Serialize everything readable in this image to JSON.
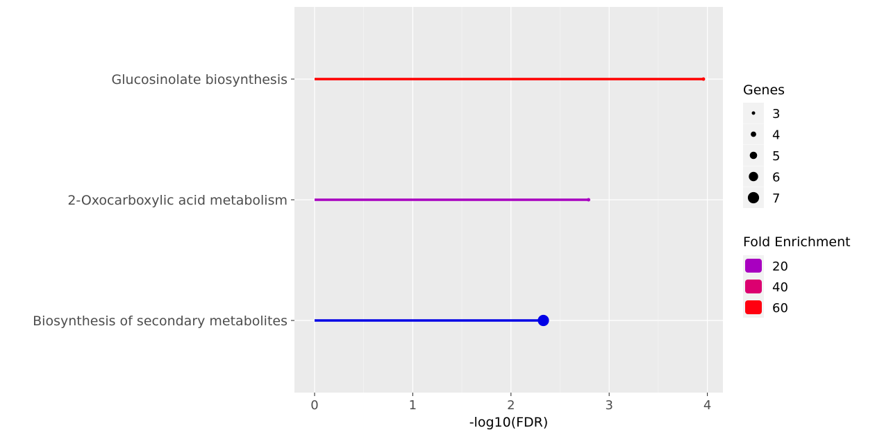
{
  "chart_data": {
    "type": "lollipop",
    "xlabel": "-log10(FDR)",
    "xlim": [
      -0.2,
      4.16
    ],
    "xticks": [
      0,
      1,
      2,
      3,
      4
    ],
    "grid": true,
    "legend_position": "right",
    "categories": [
      "Glucosinolate biosynthesis",
      "2-Oxocarboxylic acid metabolism",
      "Biosynthesis of secondary metabolites"
    ],
    "points": [
      {
        "category": "Glucosinolate biosynthesis",
        "x": 3.96,
        "genes": 3,
        "fold_enrichment": 63,
        "color": "#ff0000"
      },
      {
        "category": "2-Oxocarboxylic acid metabolism",
        "x": 2.79,
        "genes": 3,
        "fold_enrichment": 19,
        "color": "#a800c0"
      },
      {
        "category": "Biosynthesis of secondary metabolites",
        "x": 2.33,
        "genes": 7,
        "fold_enrichment": 4,
        "color": "#0000e6"
      }
    ],
    "legends": {
      "size": {
        "title": "Genes",
        "values": [
          3,
          4,
          5,
          6,
          7
        ]
      },
      "color": {
        "title": "Fold Enrichment",
        "values": [
          20,
          40,
          60
        ],
        "colors": [
          "#a800c0",
          "#dc0070",
          "#ff0010"
        ]
      }
    },
    "panel_background": "#ebebeb",
    "gridline_color": "#ffffff"
  }
}
